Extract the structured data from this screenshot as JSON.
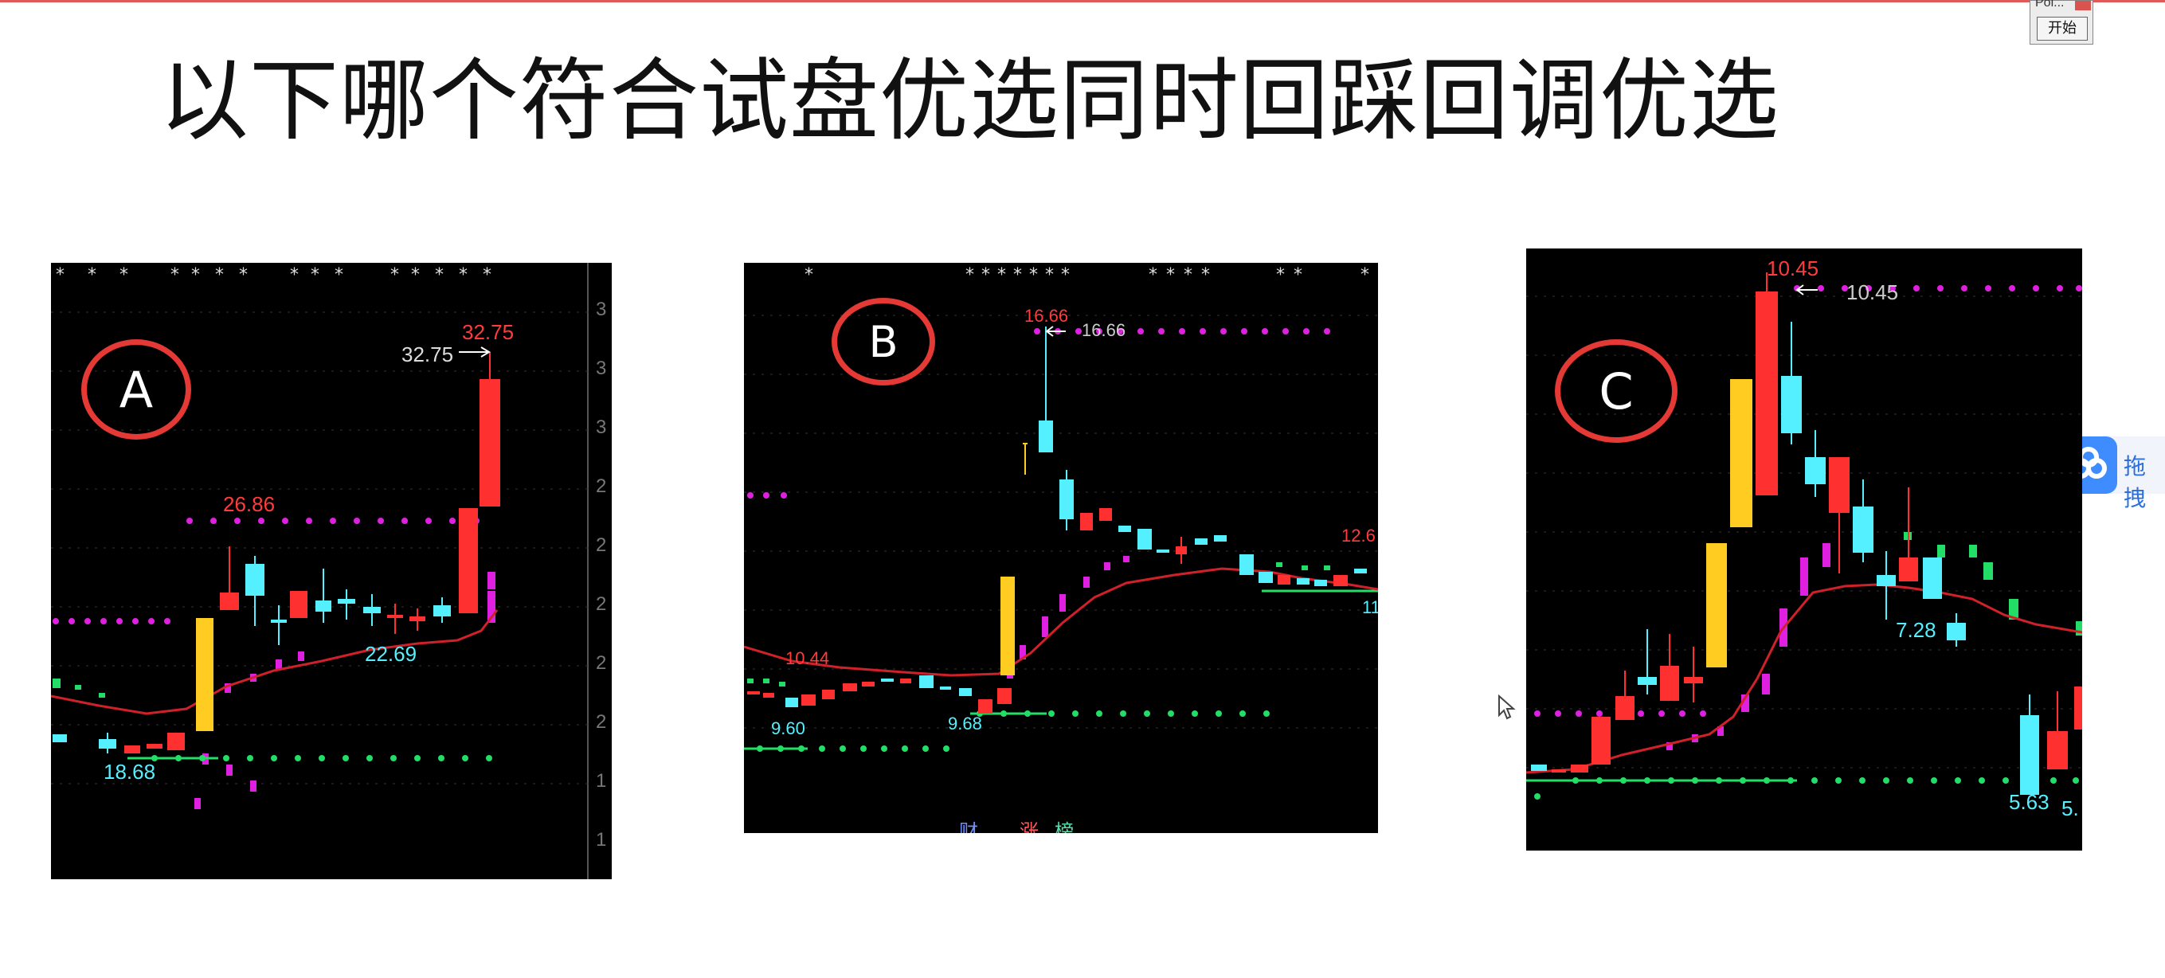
{
  "slide": {
    "title": "以下哪个符合试盘优选同时回踩回调优选"
  },
  "popup": {
    "title": "Pol...",
    "start_button": "开始"
  },
  "sidebar_widget": {
    "label": "拖拽"
  },
  "charts": {
    "a": {
      "option": "A",
      "labels": {
        "high_red": "32.75",
        "high_white": "32.75",
        "mid_high": "26.86",
        "mid_low": "22.69",
        "low": "18.68"
      },
      "axis_ticks": [
        "3",
        "3",
        "3",
        "2",
        "2",
        "2",
        "2",
        "2",
        "1",
        "1"
      ]
    },
    "b": {
      "option": "B",
      "labels": {
        "high_red": "16.66",
        "high_white": "16.66",
        "left_red": "10.44",
        "low_left": "9.60",
        "low_mid": "9.68",
        "right_red": "12.6",
        "right_cyan": "11"
      },
      "bottom_tags": [
        "财",
        "涨",
        "榜"
      ]
    },
    "c": {
      "option": "C",
      "labels": {
        "high_red": "10.45",
        "high_white": "10.45",
        "mid": "7.28",
        "low": "5.63",
        "low_cut": "5."
      }
    }
  },
  "colors": {
    "up": "#ff3030",
    "down": "#55f0ff",
    "limit": "#ffcc22",
    "ma": "#d0202a",
    "resistance": "#e020e0",
    "support": "#22dd66"
  }
}
